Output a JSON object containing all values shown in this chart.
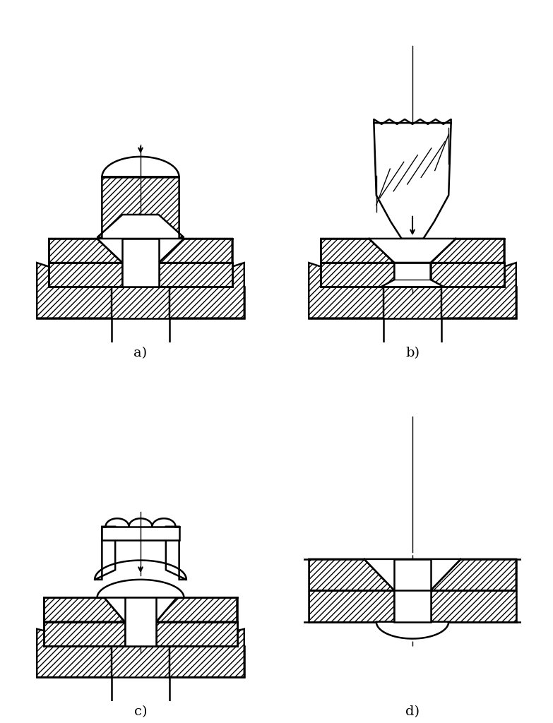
{
  "figsize": [
    7.83,
    10.24
  ],
  "dpi": 100,
  "lw": 1.8,
  "lw_thin": 1.0,
  "labels": [
    "a)",
    "b)",
    "c)",
    "d)"
  ],
  "label_fontsize": 14
}
